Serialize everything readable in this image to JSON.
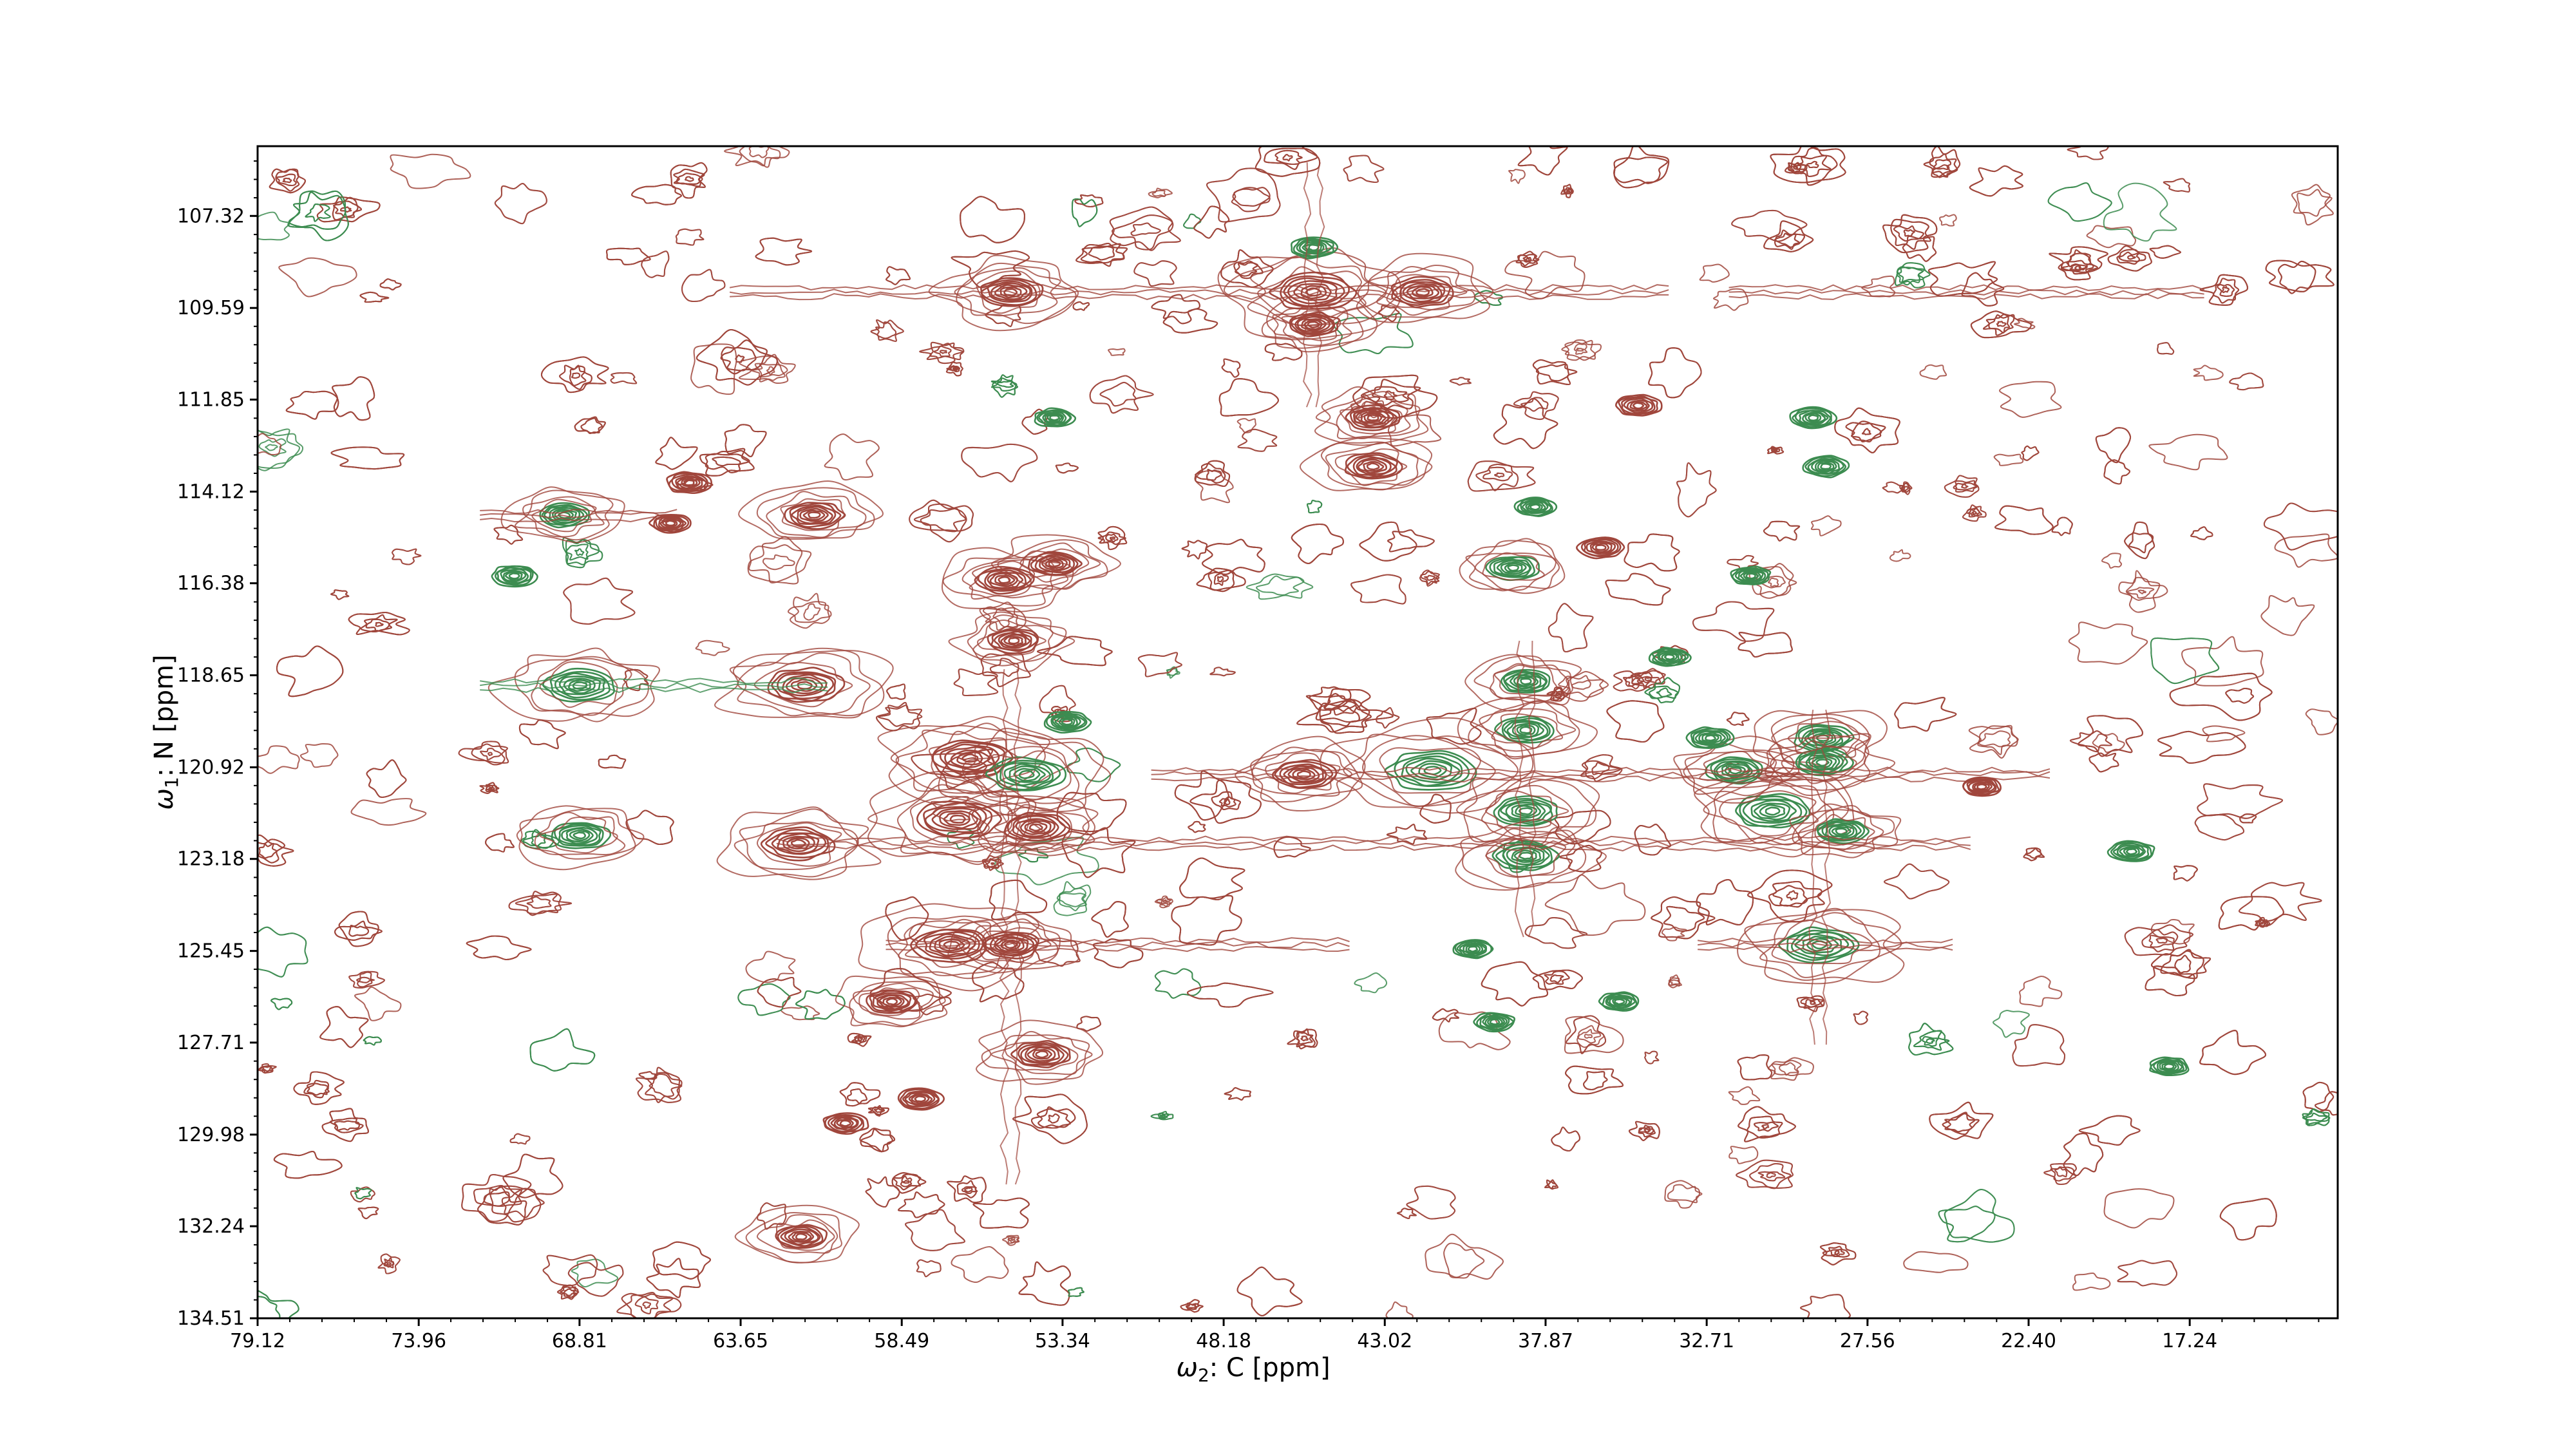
{
  "chart_data": {
    "type": "contour",
    "title": "",
    "xlabel_symbol": "ω",
    "xlabel_subscript": "2",
    "xlabel_text": ": C [ppm]",
    "ylabel_symbol": "ω",
    "ylabel_subscript": "1",
    "ylabel_text": ": N [ppm]",
    "x_axis_inverted": true,
    "y_axis_inverted": true,
    "xlim": [
      79.12,
      12.5
    ],
    "ylim": [
      105.6,
      134.51
    ],
    "x_tick_labels": [
      "79.12",
      "73.96",
      "68.81",
      "63.65",
      "58.49",
      "53.34",
      "48.18",
      "43.02",
      "37.87",
      "32.71",
      "27.56",
      "22.40",
      "17.24"
    ],
    "y_tick_labels": [
      "107.32",
      "109.59",
      "111.85",
      "114.12",
      "116.38",
      "118.65",
      "120.92",
      "123.18",
      "125.45",
      "127.71",
      "129.98",
      "132.24",
      "134.51"
    ],
    "grid": false,
    "legend": "none",
    "series": [
      {
        "color": "#a0463c",
        "sign": "positive",
        "levels": 8
      },
      {
        "color": "#3c8c50",
        "sign": "negative",
        "levels": 8
      }
    ],
    "peaks": [
      {
        "c": 55.0,
        "n": 109.2,
        "sign": "pos",
        "size": 1.0
      },
      {
        "c": 45.3,
        "n": 109.2,
        "sign": "pos",
        "size": 1.3
      },
      {
        "c": 41.8,
        "n": 109.2,
        "sign": "pos",
        "size": 1.0
      },
      {
        "c": 45.3,
        "n": 108.1,
        "sign": "neg",
        "size": 0.7
      },
      {
        "c": 45.3,
        "n": 110.0,
        "sign": "pos",
        "size": 0.8
      },
      {
        "c": 43.4,
        "n": 112.3,
        "sign": "pos",
        "size": 0.8
      },
      {
        "c": 43.4,
        "n": 113.5,
        "sign": "pos",
        "size": 0.9
      },
      {
        "c": 53.6,
        "n": 112.3,
        "sign": "neg",
        "size": 0.6
      },
      {
        "c": 34.9,
        "n": 112.0,
        "sign": "pos",
        "size": 0.7
      },
      {
        "c": 29.3,
        "n": 112.3,
        "sign": "neg",
        "size": 0.7
      },
      {
        "c": 28.9,
        "n": 113.5,
        "sign": "neg",
        "size": 0.7
      },
      {
        "c": 69.3,
        "n": 114.7,
        "sign": "neg",
        "size": 0.8
      },
      {
        "c": 61.3,
        "n": 114.7,
        "sign": "pos",
        "size": 0.9
      },
      {
        "c": 65.3,
        "n": 113.9,
        "sign": "pos",
        "size": 0.7
      },
      {
        "c": 38.9,
        "n": 116.0,
        "sign": "neg",
        "size": 0.8
      },
      {
        "c": 38.2,
        "n": 114.5,
        "sign": "neg",
        "size": 0.6
      },
      {
        "c": 55.2,
        "n": 116.3,
        "sign": "pos",
        "size": 0.9
      },
      {
        "c": 53.6,
        "n": 115.9,
        "sign": "pos",
        "size": 0.8
      },
      {
        "c": 68.8,
        "n": 118.9,
        "sign": "neg",
        "size": 1.1
      },
      {
        "c": 61.6,
        "n": 118.9,
        "sign": "pos",
        "size": 1.2
      },
      {
        "c": 54.9,
        "n": 117.8,
        "sign": "pos",
        "size": 0.8
      },
      {
        "c": 38.5,
        "n": 118.8,
        "sign": "neg",
        "size": 0.8
      },
      {
        "c": 38.5,
        "n": 120.0,
        "sign": "neg",
        "size": 0.9
      },
      {
        "c": 56.3,
        "n": 120.7,
        "sign": "pos",
        "size": 1.3
      },
      {
        "c": 54.5,
        "n": 121.1,
        "sign": "neg",
        "size": 1.2
      },
      {
        "c": 56.7,
        "n": 122.2,
        "sign": "pos",
        "size": 1.3
      },
      {
        "c": 54.2,
        "n": 122.4,
        "sign": "pos",
        "size": 1.0
      },
      {
        "c": 53.2,
        "n": 119.8,
        "sign": "neg",
        "size": 0.7
      },
      {
        "c": 45.6,
        "n": 121.1,
        "sign": "pos",
        "size": 1.0
      },
      {
        "c": 41.5,
        "n": 121.0,
        "sign": "neg",
        "size": 1.4
      },
      {
        "c": 38.5,
        "n": 122.0,
        "sign": "neg",
        "size": 1.0
      },
      {
        "c": 38.5,
        "n": 123.1,
        "sign": "neg",
        "size": 1.0
      },
      {
        "c": 30.6,
        "n": 122.0,
        "sign": "neg",
        "size": 1.2
      },
      {
        "c": 31.8,
        "n": 121.0,
        "sign": "neg",
        "size": 0.9
      },
      {
        "c": 32.6,
        "n": 120.2,
        "sign": "neg",
        "size": 0.7
      },
      {
        "c": 29.0,
        "n": 120.2,
        "sign": "neg",
        "size": 0.9
      },
      {
        "c": 29.0,
        "n": 120.8,
        "sign": "neg",
        "size": 0.9
      },
      {
        "c": 28.4,
        "n": 122.5,
        "sign": "neg",
        "size": 0.8
      },
      {
        "c": 68.8,
        "n": 122.6,
        "sign": "neg",
        "size": 0.9
      },
      {
        "c": 61.8,
        "n": 122.8,
        "sign": "pos",
        "size": 1.1
      },
      {
        "c": 56.9,
        "n": 125.3,
        "sign": "pos",
        "size": 1.2
      },
      {
        "c": 55.0,
        "n": 125.3,
        "sign": "pos",
        "size": 0.9
      },
      {
        "c": 29.1,
        "n": 125.3,
        "sign": "neg",
        "size": 1.2
      },
      {
        "c": 40.2,
        "n": 125.4,
        "sign": "neg",
        "size": 0.6
      },
      {
        "c": 39.5,
        "n": 127.2,
        "sign": "neg",
        "size": 0.6
      },
      {
        "c": 35.5,
        "n": 126.7,
        "sign": "neg",
        "size": 0.6
      },
      {
        "c": 60.3,
        "n": 129.7,
        "sign": "pos",
        "size": 0.7
      },
      {
        "c": 57.9,
        "n": 129.1,
        "sign": "pos",
        "size": 0.7
      },
      {
        "c": 61.7,
        "n": 132.5,
        "sign": "pos",
        "size": 0.8
      },
      {
        "c": 19.1,
        "n": 123.0,
        "sign": "neg",
        "size": 0.7
      },
      {
        "c": 17.9,
        "n": 128.3,
        "sign": "neg",
        "size": 0.6
      },
      {
        "c": 70.9,
        "n": 116.2,
        "sign": "neg",
        "size": 0.7
      },
      {
        "c": 65.9,
        "n": 114.9,
        "sign": "pos",
        "size": 0.6
      },
      {
        "c": 58.8,
        "n": 126.7,
        "sign": "pos",
        "size": 0.8
      },
      {
        "c": 54.0,
        "n": 128.0,
        "sign": "pos",
        "size": 0.9
      },
      {
        "c": 36.1,
        "n": 115.5,
        "sign": "pos",
        "size": 0.7
      },
      {
        "c": 33.9,
        "n": 118.2,
        "sign": "neg",
        "size": 0.6
      },
      {
        "c": 31.3,
        "n": 116.2,
        "sign": "neg",
        "size": 0.6
      },
      {
        "c": 23.9,
        "n": 121.4,
        "sign": "pos",
        "size": 0.6
      }
    ]
  }
}
